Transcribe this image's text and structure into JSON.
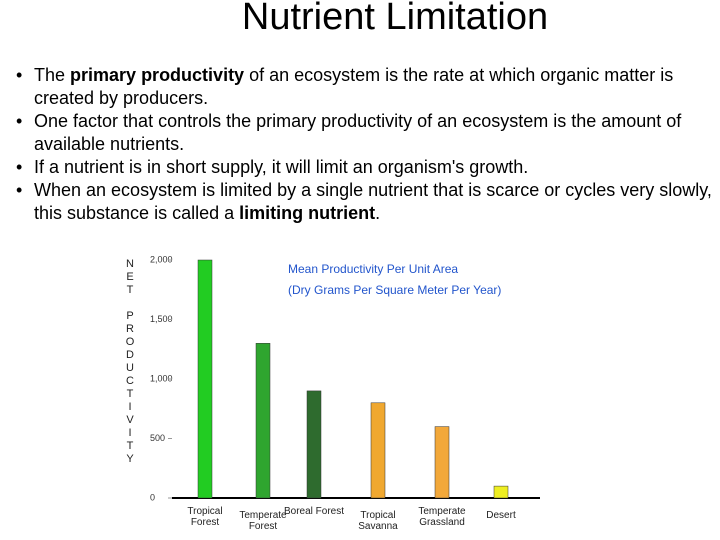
{
  "header": {
    "title": "Nutrient Limitation"
  },
  "bullets": [
    {
      "before": "The ",
      "bold": "primary productivity",
      "after": " of an ecosystem is the rate at which organic matter is created by producers."
    },
    {
      "text": "One factor that controls the primary productivity of an ecosystem is the amount of available nutrients."
    },
    {
      "text": "If a nutrient is in short supply, it will limit an organism's growth."
    },
    {
      "before": "When an ecosystem is limited by a single nutrient that is scarce or cycles very slowly, this substance is called a ",
      "bold": "limiting nutrient",
      "after": "."
    }
  ],
  "chart_data": {
    "type": "bar",
    "title": "Mean Productivity Per Unit Area",
    "subtitle": "(Dry Grams Per Square Meter Per Year)",
    "y_label": "NET PRODUCTIVITY",
    "categories": [
      "Tropical Forest",
      "Temperate Forest",
      "Boreal Forest",
      "Tropical Savanna",
      "Temperate Grassland",
      "Desert"
    ],
    "values": [
      2000,
      1300,
      900,
      800,
      600,
      100
    ],
    "colors": [
      "#22cc22",
      "#2fa52f",
      "#2e6b2e",
      "#f0a830",
      "#f2a83a",
      "#eeee22"
    ],
    "ylim": [
      0,
      2000
    ],
    "yticks": [
      0,
      500,
      {
        "value": 1000,
        "label": "1,000"
      },
      {
        "value": 1500,
        "label": "1,500"
      },
      {
        "value": 2000,
        "label": "2,000"
      }
    ]
  }
}
